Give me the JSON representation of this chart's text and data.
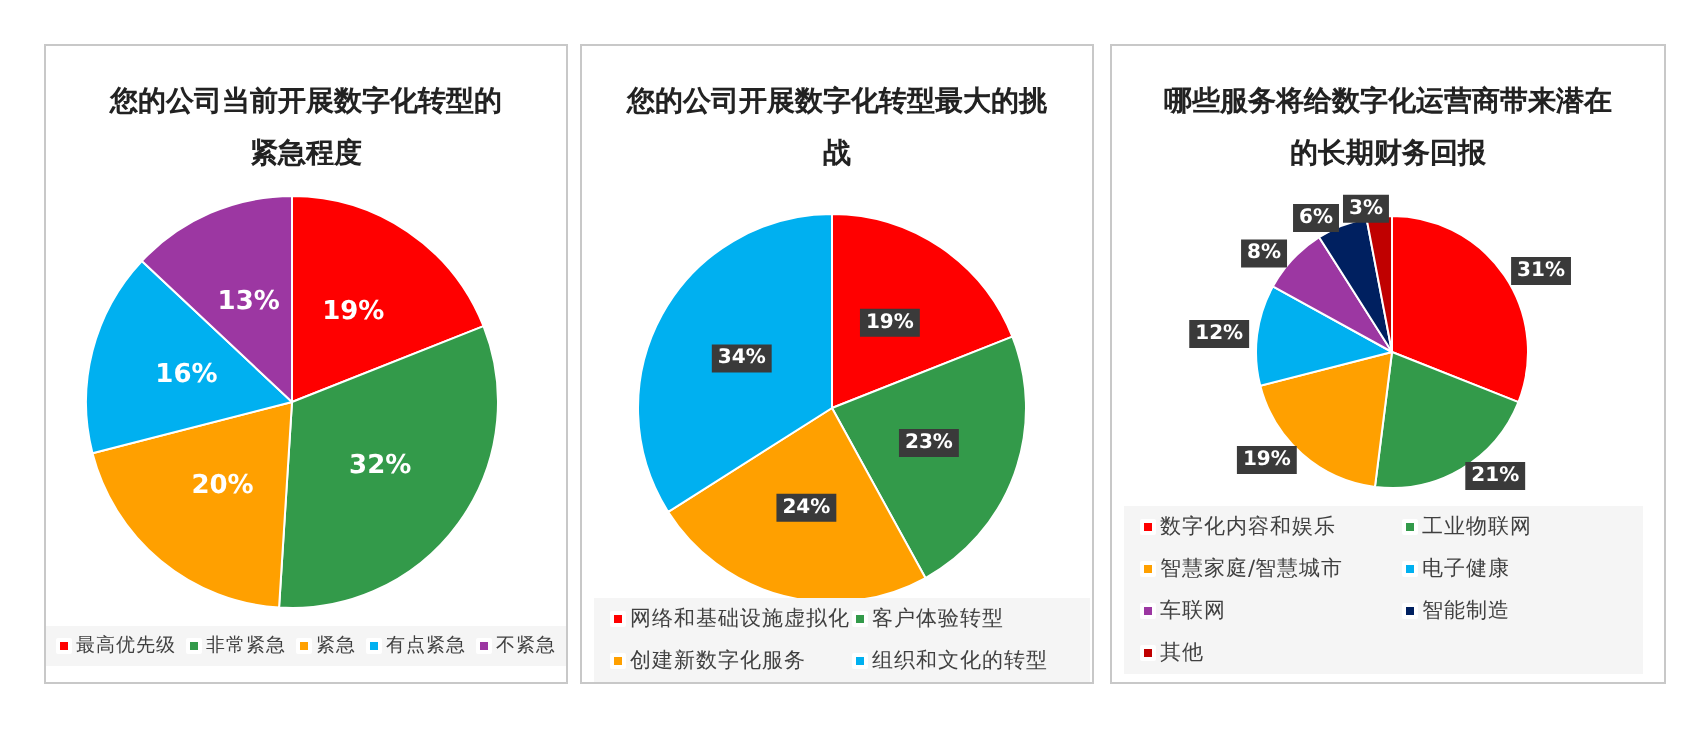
{
  "chart_data": [
    {
      "type": "pie",
      "title": "您的公司当前开展数字化转型的紧急程度",
      "categories": [
        "最高优先级",
        "非常紧急",
        "紧急",
        "有点紧急",
        "不紧急"
      ],
      "values": [
        19,
        32,
        20,
        16,
        13
      ],
      "value_labels": [
        "19%",
        "32%",
        "20%",
        "16%",
        "13%"
      ],
      "colors": [
        "#ff0000",
        "#339a4a",
        "#ffa000",
        "#00b0f0",
        "#9c37a2"
      ],
      "legend": "bottom"
    },
    {
      "type": "pie",
      "title": "您的公司开展数字化转型最大的挑战",
      "categories": [
        "网络和基础设施虚拟化",
        "客户体验转型",
        "创建新数字化服务",
        "组织和文化的转型"
      ],
      "values": [
        19,
        23,
        24,
        34
      ],
      "value_labels": [
        "19%",
        "23%",
        "24%",
        "34%"
      ],
      "colors": [
        "#ff0000",
        "#339a4a",
        "#ffa000",
        "#00b0f0"
      ],
      "legend": "bottom"
    },
    {
      "type": "pie",
      "title": "哪些服务将给数字化运营商带来潜在的长期财务回报",
      "categories": [
        "数字化内容和娱乐",
        "工业物联网",
        "智慧家庭/智慧城市",
        "电子健康",
        "车联网",
        "智能制造",
        "其他"
      ],
      "values": [
        31,
        21,
        19,
        12,
        8,
        6,
        3
      ],
      "value_labels": [
        "31%",
        "21%",
        "19%",
        "12%",
        "8%",
        "6%",
        "3%"
      ],
      "colors": [
        "#ff0000",
        "#339a4a",
        "#ffa000",
        "#00b0f0",
        "#9c37a2",
        "#002060",
        "#c00000"
      ],
      "legend": "bottom"
    }
  ]
}
